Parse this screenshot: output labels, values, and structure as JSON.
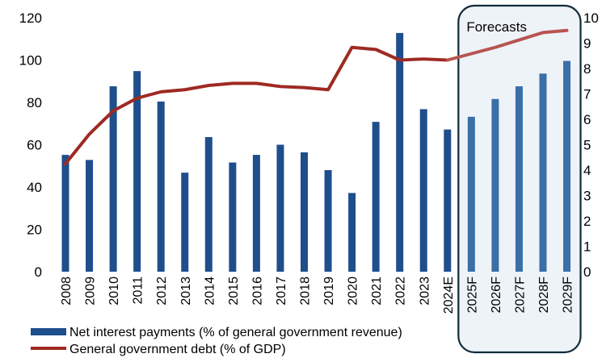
{
  "chart_data": {
    "type": "bar",
    "categories": [
      "2008",
      "2009",
      "2010",
      "2011",
      "2012",
      "2013",
      "2014",
      "2015",
      "2016",
      "2017",
      "2018",
      "2019",
      "2020",
      "2021",
      "2022",
      "2023",
      "2024E",
      "2025F",
      "2026F",
      "2027F",
      "2028F",
      "2029F"
    ],
    "series": [
      {
        "name": "Net interest payments (% of general government revenue)",
        "type": "bar",
        "axis": "right",
        "color": "#1F4E8C",
        "forecast_color": "#3A6FA8",
        "values": [
          4.6,
          4.4,
          7.3,
          7.9,
          6.7,
          3.9,
          5.3,
          4.3,
          4.6,
          5.0,
          4.7,
          4.0,
          3.1,
          5.9,
          9.4,
          6.4,
          5.6,
          6.1,
          6.8,
          7.3,
          7.8,
          8.3
        ]
      },
      {
        "name": "General government debt (% of GDP)",
        "type": "line",
        "axis": "left",
        "color": "#9E2A22",
        "forecast_color": "#B85450",
        "values": [
          51,
          65,
          76,
          82,
          85,
          86,
          88,
          89,
          89,
          87.5,
          87,
          86,
          106,
          105,
          100,
          100.5,
          100,
          103,
          106,
          109.5,
          113,
          114
        ]
      }
    ],
    "y_left": {
      "min": 0,
      "max": 120,
      "ticks": [
        "0",
        "20",
        "40",
        "60",
        "80",
        "100",
        "120"
      ]
    },
    "y_right": {
      "min": 0,
      "max": 10,
      "ticks": [
        "0",
        "1",
        "2",
        "3",
        "4",
        "5",
        "6",
        "7",
        "8",
        "9",
        "10"
      ]
    },
    "forecast": {
      "label": "Forecasts",
      "start_index": 17,
      "end_index": 21
    },
    "legend": [
      {
        "label": "Net interest payments (% of general government revenue)",
        "kind": "bar"
      },
      {
        "label": "General government debt (% of GDP)",
        "kind": "line"
      }
    ],
    "grid": false
  }
}
